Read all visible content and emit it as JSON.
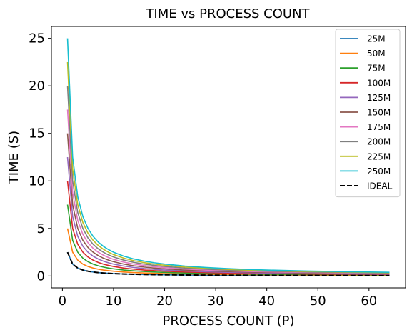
{
  "chart_data": {
    "type": "line",
    "title": "TIME vs PROCESS COUNT",
    "xlabel": "PROCESS COUNT (P)",
    "ylabel": "TIME (S)",
    "xlim": [
      -2.15,
      67.15
    ],
    "ylim": [
      -1.25,
      26.25
    ],
    "xticks": [
      0,
      10,
      20,
      30,
      40,
      50,
      60
    ],
    "yticks": [
      0,
      5,
      10,
      15,
      20,
      25
    ],
    "x": [
      1,
      2,
      3,
      4,
      5,
      6,
      7,
      8,
      9,
      10,
      12,
      14,
      16,
      18,
      20,
      24,
      28,
      32,
      36,
      40,
      48,
      56,
      64
    ],
    "grid": false,
    "legend_position": "top-right",
    "series": [
      {
        "name": "25M",
        "color": "#1f77b4",
        "values": [
          2.5,
          1.25,
          0.833,
          0.625,
          0.5,
          0.417,
          0.357,
          0.313,
          0.278,
          0.25,
          0.208,
          0.179,
          0.156,
          0.139,
          0.125,
          0.104,
          0.089,
          0.078,
          0.069,
          0.063,
          0.052,
          0.045,
          0.039
        ]
      },
      {
        "name": "50M",
        "color": "#ff7f0e",
        "values": [
          5.0,
          2.5,
          1.667,
          1.25,
          1.0,
          0.833,
          0.714,
          0.625,
          0.556,
          0.5,
          0.417,
          0.357,
          0.313,
          0.278,
          0.25,
          0.208,
          0.179,
          0.156,
          0.139,
          0.125,
          0.104,
          0.089,
          0.078
        ]
      },
      {
        "name": "75M",
        "color": "#2ca02c",
        "values": [
          7.5,
          3.75,
          2.5,
          1.875,
          1.5,
          1.25,
          1.071,
          0.938,
          0.833,
          0.75,
          0.625,
          0.536,
          0.469,
          0.417,
          0.375,
          0.313,
          0.268,
          0.234,
          0.208,
          0.188,
          0.156,
          0.134,
          0.117
        ]
      },
      {
        "name": "100M",
        "color": "#d62728",
        "values": [
          10.0,
          5.0,
          3.333,
          2.5,
          2.0,
          1.667,
          1.429,
          1.25,
          1.111,
          1.0,
          0.833,
          0.714,
          0.625,
          0.556,
          0.5,
          0.417,
          0.357,
          0.313,
          0.278,
          0.25,
          0.208,
          0.179,
          0.156
        ]
      },
      {
        "name": "125M",
        "color": "#9467bd",
        "values": [
          12.5,
          6.25,
          4.167,
          3.125,
          2.5,
          2.083,
          1.786,
          1.563,
          1.389,
          1.25,
          1.042,
          0.893,
          0.781,
          0.694,
          0.625,
          0.521,
          0.446,
          0.391,
          0.347,
          0.313,
          0.26,
          0.223,
          0.195
        ]
      },
      {
        "name": "150M",
        "color": "#8c564b",
        "values": [
          15.0,
          7.5,
          5.0,
          3.75,
          3.0,
          2.5,
          2.143,
          1.875,
          1.667,
          1.5,
          1.25,
          1.071,
          0.938,
          0.833,
          0.75,
          0.625,
          0.536,
          0.469,
          0.417,
          0.375,
          0.313,
          0.268,
          0.234
        ]
      },
      {
        "name": "175M",
        "color": "#e377c2",
        "values": [
          17.5,
          8.75,
          5.833,
          4.375,
          3.5,
          2.917,
          2.5,
          2.188,
          1.944,
          1.75,
          1.458,
          1.25,
          1.094,
          0.972,
          0.875,
          0.729,
          0.625,
          0.547,
          0.486,
          0.438,
          0.365,
          0.313,
          0.273
        ]
      },
      {
        "name": "200M",
        "color": "#7f7f7f",
        "values": [
          20.0,
          10.0,
          6.667,
          5.0,
          4.0,
          3.333,
          2.857,
          2.5,
          2.222,
          2.0,
          1.667,
          1.429,
          1.25,
          1.111,
          1.0,
          0.833,
          0.714,
          0.625,
          0.556,
          0.5,
          0.417,
          0.357,
          0.313
        ]
      },
      {
        "name": "225M",
        "color": "#bcbd22",
        "values": [
          22.5,
          11.25,
          7.5,
          5.625,
          4.5,
          3.75,
          3.214,
          2.813,
          2.5,
          2.25,
          1.875,
          1.607,
          1.406,
          1.25,
          1.125,
          0.938,
          0.804,
          0.703,
          0.625,
          0.563,
          0.469,
          0.402,
          0.352
        ]
      },
      {
        "name": "250M",
        "color": "#17becf",
        "values": [
          25.0,
          12.5,
          8.333,
          6.25,
          5.0,
          4.167,
          3.571,
          3.125,
          2.778,
          2.5,
          2.083,
          1.786,
          1.563,
          1.389,
          1.25,
          1.042,
          0.893,
          0.781,
          0.694,
          0.625,
          0.521,
          0.446,
          0.391
        ]
      },
      {
        "name": "IDEAL",
        "color": "#000000",
        "dashed": true,
        "values": [
          2.5,
          1.25,
          0.833,
          0.625,
          0.5,
          0.417,
          0.357,
          0.313,
          0.278,
          0.25,
          0.208,
          0.179,
          0.156,
          0.139,
          0.125,
          0.104,
          0.089,
          0.078,
          0.069,
          0.063,
          0.052,
          0.045,
          0.039
        ]
      }
    ]
  }
}
